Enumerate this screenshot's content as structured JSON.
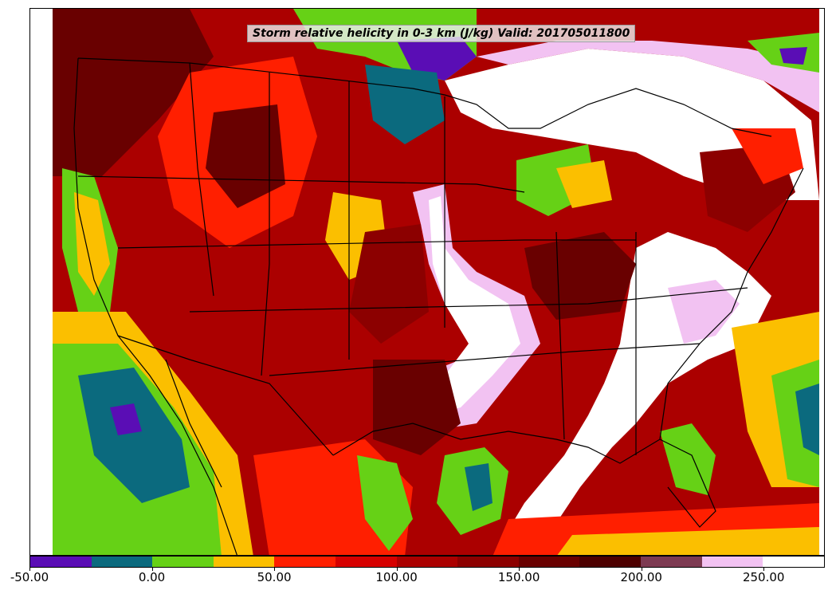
{
  "title": "Storm relative helicity in 0-3 km (J/kg) Valid: 201705011800",
  "colorbar": {
    "colors": [
      "#5a0db5",
      "#0b6a7e",
      "#66d116",
      "#fbbf00",
      "#ff1f00",
      "#d60000",
      "#ab0000",
      "#8c0000",
      "#690000",
      "#4d0000",
      "#7d3a52",
      "#f2c2f2",
      "#ffffff"
    ],
    "bin_edges": [
      -50,
      -25,
      0,
      25,
      50,
      75,
      100,
      125,
      150,
      175,
      200,
      225,
      250,
      275
    ],
    "tick_labels": [
      "-50.00",
      "0.00",
      "50.00",
      "100.00",
      "150.00",
      "200.00",
      "250.00"
    ],
    "tick_values": [
      -50,
      0,
      50,
      100,
      150,
      200,
      250
    ]
  },
  "legend": {
    "field": "storm-relative helicity 0-3 km",
    "units": "J/kg",
    "valid_time": "201705011800"
  }
}
